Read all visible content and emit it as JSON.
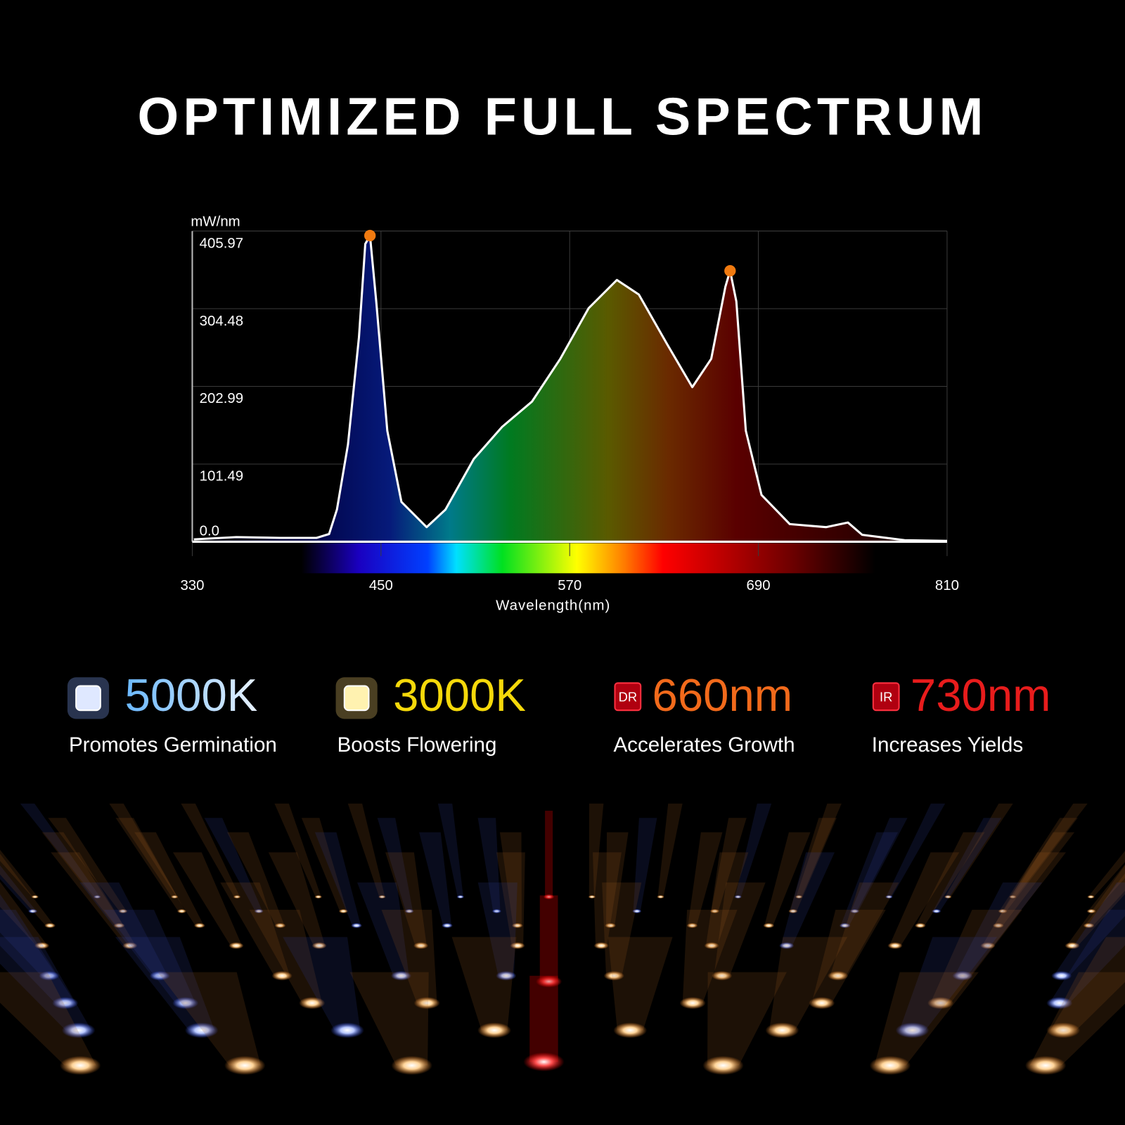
{
  "chart_data": {
    "type": "line",
    "title": "OPTIMIZED FULL SPECTRUM",
    "ylabel": "mW/nm",
    "xlabel": "Wavelength(nm)",
    "xlim": [
      330,
      810
    ],
    "xticks": [
      330,
      450,
      570,
      690,
      810
    ],
    "ylim": [
      0,
      405.97
    ],
    "yticks": [
      {
        "value": 0,
        "label": "0.0"
      },
      101.49,
      202.99,
      304.48,
      405.97
    ],
    "grid": true,
    "series": [
      {
        "name": "Spectrum",
        "color": "#ffffff",
        "x": [
          331,
          358,
          386,
          409,
          417,
          422,
          429,
          436,
          440,
          443,
          447,
          454,
          463,
          479,
          491,
          509,
          527,
          546,
          564,
          582,
          600,
          614,
          632,
          648,
          660,
          669,
          672,
          676,
          682,
          692,
          710,
          733,
          747,
          756,
          783,
          810
        ],
        "values": [
          3,
          6,
          5,
          5,
          10,
          42,
          127,
          267,
          389,
          400,
          314,
          145,
          52,
          19,
          42,
          108,
          150,
          183,
          239,
          305,
          342,
          323,
          258,
          202,
          239,
          333,
          354,
          314,
          145,
          61,
          23,
          19,
          25,
          9,
          2,
          1
        ]
      }
    ],
    "peaks": {
      "x": [
        443,
        672
      ],
      "values": [
        400,
        354
      ],
      "color": "#f07a10"
    }
  },
  "features": [
    {
      "value": "5000K",
      "description": "Promotes Germination",
      "color": "#8fd0f5"
    },
    {
      "value": "3000K",
      "description": "Boosts Flowering",
      "color": "#f5d90a"
    },
    {
      "value": "660nm",
      "description": "Accelerates Growth",
      "color": "#f26a1b",
      "badge": "DR"
    },
    {
      "value": "730nm",
      "description": "Increases Yields",
      "color": "#e81c1c",
      "badge": "IR"
    }
  ]
}
